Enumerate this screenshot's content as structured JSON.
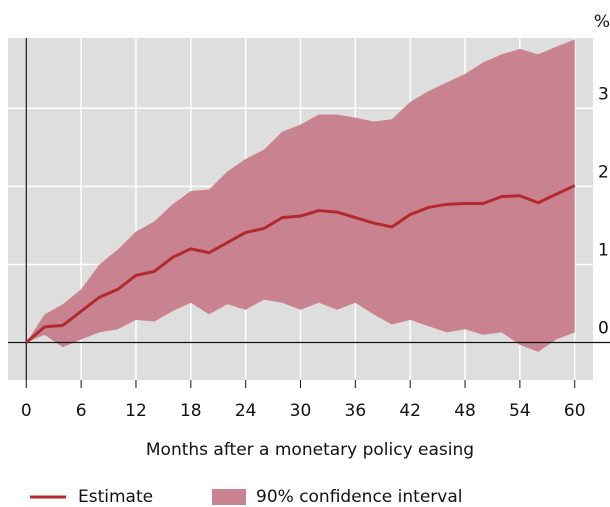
{
  "chart_data": {
    "type": "line",
    "x": [
      0,
      2,
      4,
      6,
      8,
      10,
      12,
      14,
      16,
      18,
      20,
      22,
      24,
      26,
      28,
      30,
      32,
      34,
      36,
      38,
      40,
      42,
      44,
      46,
      48,
      50,
      52,
      54,
      56,
      58,
      60
    ],
    "series": [
      {
        "name": "Estimate",
        "color": "#b22a2e",
        "values": [
          0,
          0.2,
          0.22,
          0.4,
          0.58,
          0.68,
          0.86,
          0.91,
          1.09,
          1.2,
          1.15,
          1.28,
          1.41,
          1.46,
          1.6,
          1.62,
          1.69,
          1.67,
          1.6,
          1.53,
          1.48,
          1.64,
          1.73,
          1.77,
          1.78,
          1.78,
          1.87,
          1.88,
          1.79,
          1.9,
          2.01
        ]
      },
      {
        "name": "90% confidence interval",
        "color": "#c98290",
        "lower": [
          0,
          0.1,
          -0.06,
          0.04,
          0.13,
          0.17,
          0.29,
          0.27,
          0.4,
          0.51,
          0.36,
          0.49,
          0.42,
          0.55,
          0.51,
          0.42,
          0.51,
          0.42,
          0.51,
          0.36,
          0.23,
          0.29,
          0.21,
          0.13,
          0.17,
          0.1,
          0.13,
          -0.03,
          -0.12,
          0.04,
          0.13
        ],
        "upper": [
          0,
          0.36,
          0.49,
          0.68,
          1.0,
          1.19,
          1.42,
          1.55,
          1.77,
          1.94,
          1.96,
          2.19,
          2.35,
          2.47,
          2.7,
          2.79,
          2.92,
          2.92,
          2.88,
          2.83,
          2.86,
          3.08,
          3.22,
          3.33,
          3.44,
          3.59,
          3.69,
          3.76,
          3.69,
          3.79,
          3.88
        ]
      }
    ],
    "x_label": "Months after a monetary policy easing",
    "y_unit": "%",
    "xlim": [
      -2,
      62
    ],
    "xticks": [
      0,
      6,
      12,
      18,
      24,
      30,
      36,
      42,
      48,
      54,
      60
    ],
    "ylim": [
      -0.48,
      3.9
    ],
    "yticks": [
      0,
      1,
      2,
      3
    ],
    "grid": true,
    "background": "#dedede",
    "legend": "bottom"
  }
}
